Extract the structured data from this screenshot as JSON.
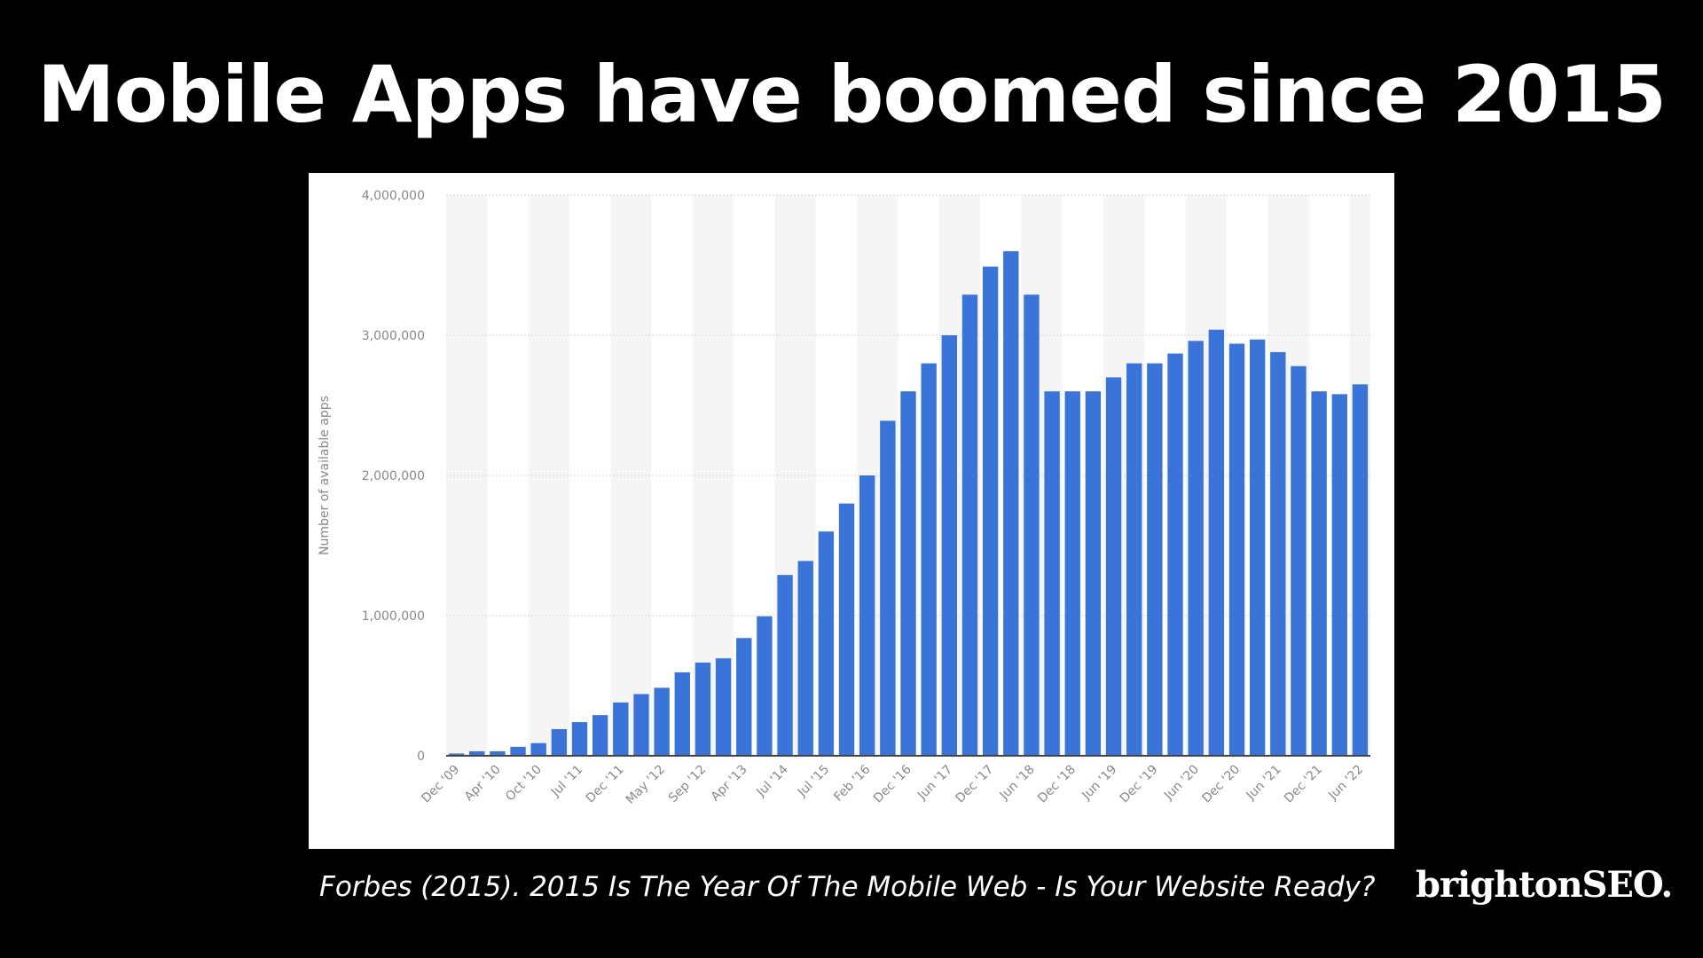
{
  "slide": {
    "title": "Mobile Apps have boomed since 2015",
    "caption": "Forbes (2015). 2015 Is The Year Of The Mobile Web - Is Your Website Ready?",
    "brand": "brightonSEO."
  },
  "colors": {
    "background": "#000000",
    "panel": "#ffffff",
    "bar": "#3a74d8",
    "band": "#f5f5f5",
    "grid": "#d6d6d6",
    "axis": "#444444",
    "tick_text": "#888888"
  },
  "chart_data": {
    "type": "bar",
    "title": "",
    "xlabel": "",
    "ylabel": "Number of available apps",
    "ylim": [
      0,
      4000000
    ],
    "yticks": [
      0,
      1000000,
      2000000,
      3000000,
      4000000
    ],
    "ytick_labels": [
      "0",
      "1,000,000",
      "2,000,000",
      "3,000,000",
      "4,000,000"
    ],
    "grid": true,
    "x_tick_labels": [
      "Dec '09",
      "Apr '10",
      "Oct '10",
      "Jul '11",
      "Dec '11",
      "May '12",
      "Sep '12",
      "Apr '13",
      "Jul '14",
      "Jul '15",
      "Feb '16",
      "Dec '16",
      "Jun '17",
      "Dec '17",
      "Jun '18",
      "Dec '18",
      "Jun '19",
      "Dec '19",
      "Jun '20",
      "Dec '20",
      "Jun '21",
      "Dec '21",
      "Jun '22"
    ],
    "values": [
      16000,
      32000,
      32000,
      64000,
      90000,
      190000,
      240000,
      290000,
      380000,
      440000,
      485000,
      595000,
      665000,
      695000,
      840000,
      995000,
      1290000,
      1390000,
      1600000,
      1800000,
      2000000,
      2390000,
      2600000,
      2800000,
      3000000,
      3290000,
      3490000,
      3600000,
      3290000,
      2600000,
      2600000,
      2600000,
      2700000,
      2800000,
      2800000,
      2870000,
      2960000,
      3040000,
      2940000,
      2970000,
      2880000,
      2780000,
      2600000,
      2580000,
      2650000
    ]
  }
}
